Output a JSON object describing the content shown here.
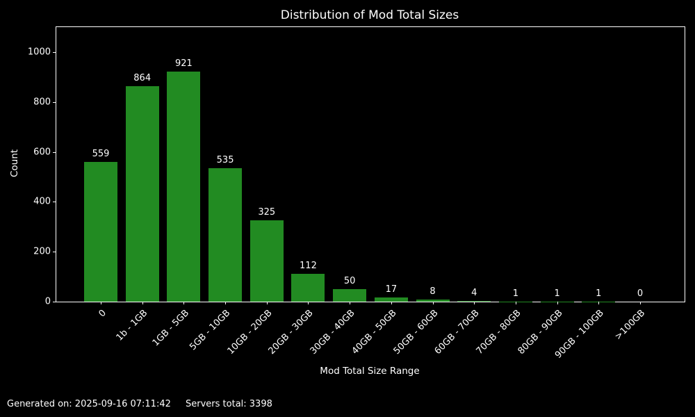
{
  "footer": {
    "generated": "Generated on: 2025-09-16 07:11:42",
    "servers_total": "Servers total: 3398"
  },
  "chart_data": {
    "type": "bar",
    "title": "Distribution of Mod Total Sizes",
    "xlabel": "Mod Total Size Range",
    "ylabel": "Count",
    "categories": [
      "0",
      "1b - 1GB",
      "1GB - 5GB",
      "5GB - 10GB",
      "10GB - 20GB",
      "20GB - 30GB",
      "30GB - 40GB",
      "40GB - 50GB",
      "50GB - 60GB",
      "60GB - 70GB",
      "70GB - 80GB",
      "80GB - 90GB",
      "90GB - 100GB",
      ">100GB"
    ],
    "values": [
      559,
      864,
      921,
      535,
      325,
      112,
      50,
      17,
      8,
      4,
      1,
      1,
      1,
      0
    ],
    "yticks": [
      0,
      200,
      400,
      600,
      800,
      1000
    ],
    "ylim": [
      0,
      1100
    ],
    "grid": false,
    "legend": null,
    "bar_color": "#228b22",
    "background_color": "#000000",
    "text_color": "#ffffff"
  }
}
